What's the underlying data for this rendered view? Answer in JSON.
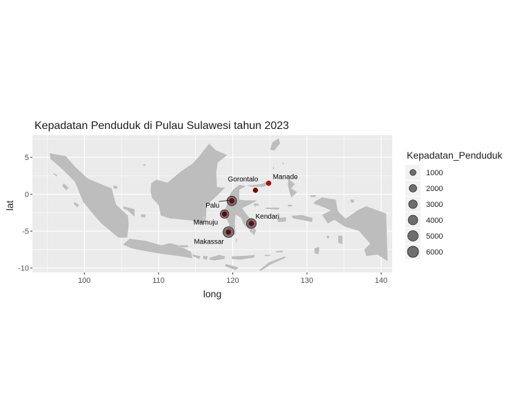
{
  "chart_data": {
    "type": "map",
    "title": "Kepadatan Penduduk di Pulau Sulawesi tahun 2023",
    "xlabel": "long",
    "ylabel": "lat",
    "xlim": [
      93,
      141.5
    ],
    "ylim": [
      -10.6,
      8
    ],
    "x_ticks": [
      100,
      110,
      120,
      130,
      140
    ],
    "y_ticks": [
      5,
      0,
      -5,
      -10
    ],
    "grid": true,
    "land_color": "#bdbdbd",
    "panel_color": "#ebebeb",
    "point_colors": {
      "bubble_fill": "#6e6e6e",
      "marker": "#cc0000",
      "marker_dark": "#7a0000"
    },
    "cities": [
      {
        "name": "Manado",
        "long": 124.84,
        "lat": 1.49,
        "density": 400
      },
      {
        "name": "Gorontalo",
        "long": 123.06,
        "lat": 0.54,
        "density": 1000
      },
      {
        "name": "Palu",
        "long": 119.87,
        "lat": -0.9,
        "density": 3000
      },
      {
        "name": "Mamuju",
        "long": 118.89,
        "lat": -2.68,
        "density": 2200
      },
      {
        "name": "Kendari",
        "long": 122.51,
        "lat": -3.97,
        "density": 3200
      },
      {
        "name": "Makassar",
        "long": 119.42,
        "lat": -5.13,
        "density": 4200
      }
    ],
    "legend": {
      "title": "Kepadatan_Penduduk",
      "position": "right",
      "entries": [
        1000,
        2000,
        3000,
        4000,
        5000,
        6000
      ]
    }
  }
}
